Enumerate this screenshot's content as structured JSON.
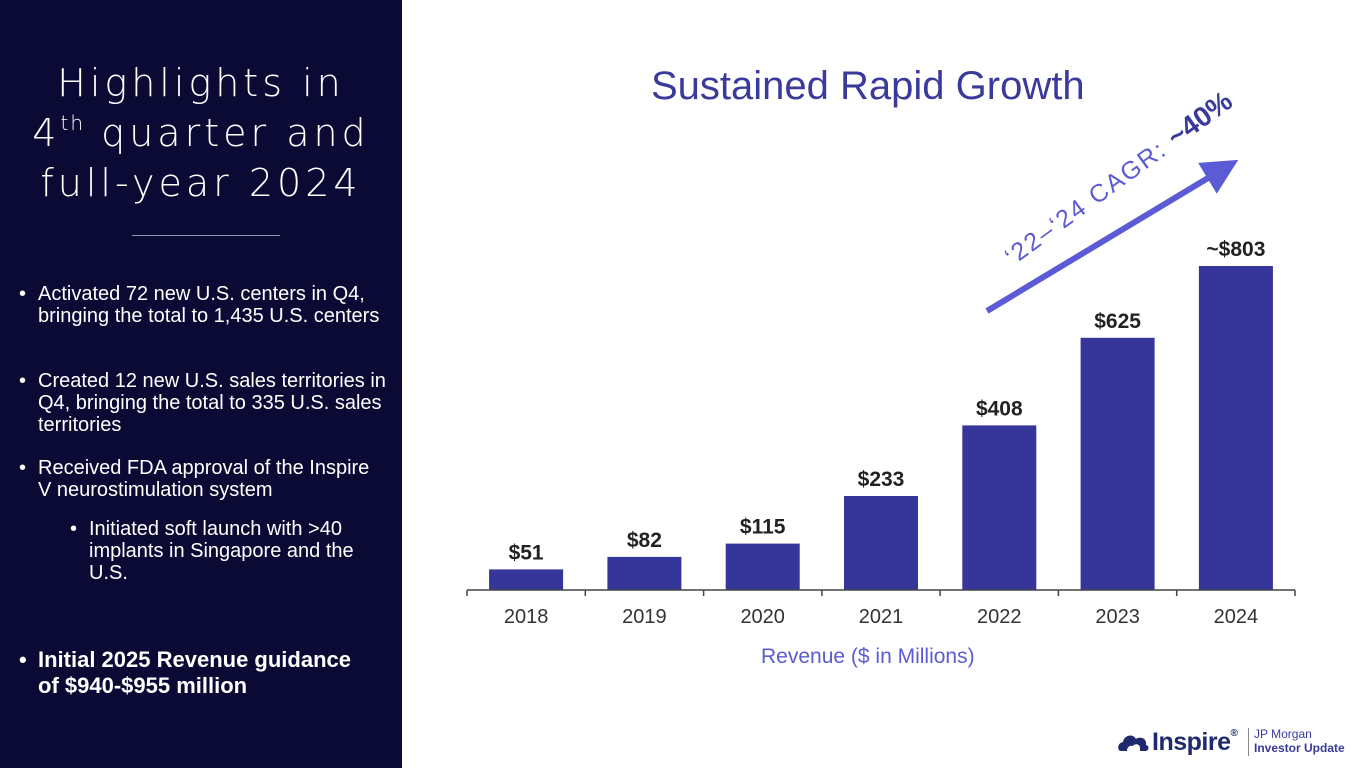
{
  "sidebar": {
    "title_line1": "Highlights in",
    "title_line2_num": "4",
    "title_line2_sup": "th",
    "title_line2_rest": " quarter and",
    "title_line3": "full-year 2024",
    "bullets": [
      "Activated 72 new U.S. centers in Q4, bringing the total to 1,435 U.S. centers",
      "Created 12 new U.S. sales territories in Q4, bringing the total to 335 U.S. sales territories",
      "Received FDA approval of the Inspire V neurostimulation system",
      "Initiated soft launch with >40 implants in Singapore and the U.S.",
      "Initial 2025 Revenue guidance of $940-$955 million"
    ],
    "bullet_symbol": "•"
  },
  "chart_data": {
    "type": "bar",
    "title": "Sustained Rapid Growth",
    "xlabel": "Revenue ($ in Millions)",
    "ylabel": "",
    "categories": [
      "2018",
      "2019",
      "2020",
      "2021",
      "2022",
      "2023",
      "2024"
    ],
    "values": [
      51,
      82,
      115,
      233,
      408,
      625,
      803
    ],
    "data_labels": [
      "$51",
      "$82",
      "$115",
      "$233",
      "$408",
      "$625",
      "~$803"
    ],
    "ylim": [
      0,
      803
    ],
    "bar_color": "#35359a",
    "grid": false,
    "annotation": {
      "prefix": "‘22–‘24 CAGR: ",
      "value": "~40%",
      "color": "#5b5bd6"
    }
  },
  "branding": {
    "logo_text": "Inspire",
    "logo_mark": "®",
    "subtitle_line1": "JP Morgan",
    "subtitle_line2": "Investor Update"
  },
  "colors": {
    "sidebar_bg": "#0a0a35",
    "title": "#3a3a9c",
    "accent": "#5b5bd6"
  }
}
